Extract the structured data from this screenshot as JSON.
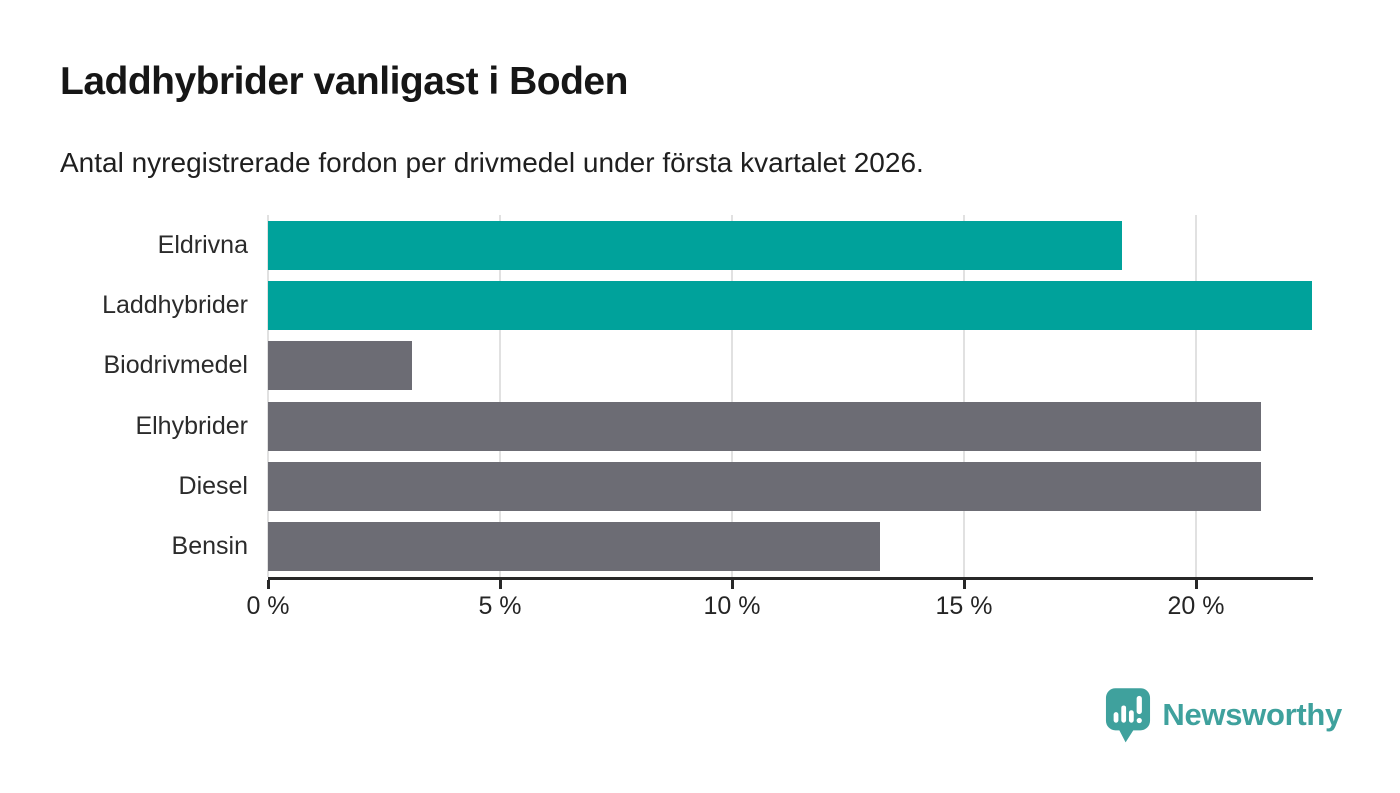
{
  "header": {
    "title": "Laddhybrider vanligast i Boden",
    "subtitle": "Antal nyregistrerade fordon per drivmedel under första kvartalet 2026."
  },
  "chart_data": {
    "type": "bar",
    "orientation": "horizontal",
    "title": "Laddhybrider vanligast i Boden",
    "subtitle": "Antal nyregistrerade fordon per drivmedel under första kvartalet 2026.",
    "categories": [
      "Eldrivna",
      "Laddhybrider",
      "Biodrivmedel",
      "Elhybrider",
      "Diesel",
      "Bensin"
    ],
    "values": [
      18.4,
      22.5,
      3.1,
      21.4,
      21.4,
      13.2
    ],
    "unit": "%",
    "xlim": [
      0,
      22.5
    ],
    "x_ticks": [
      0,
      5,
      10,
      15,
      20
    ],
    "x_tick_labels": [
      "0 %",
      "5 %",
      "10 %",
      "15 %",
      "20 %"
    ],
    "grid": "vertical-on",
    "legend": "none",
    "bar_colors": [
      "#00a29b",
      "#00a29b",
      "#6c6c74",
      "#6c6c74",
      "#6c6c74",
      "#6c6c74"
    ],
    "highlight_color": "#00a29b",
    "default_color": "#6c6c74",
    "gridline_color": "#e1e1e1",
    "axis_color": "#282828"
  },
  "footer": {
    "brand": "Newsworthy",
    "brand_color": "#3fa19d"
  }
}
